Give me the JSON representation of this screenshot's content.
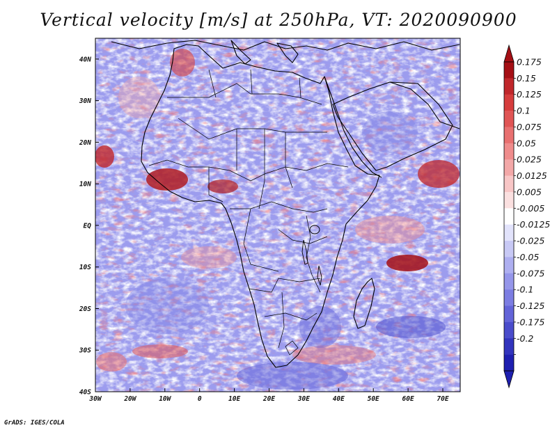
{
  "map": {
    "title": "Vertical velocity [m/s] at 250hPa, VT: 2020090900",
    "credit": "GrADS: IGES/COLA",
    "lon_range": [
      -30,
      75
    ],
    "lat_range": [
      -40,
      45
    ],
    "lon_ticks": [
      "30W",
      "20W",
      "10W",
      "0",
      "10E",
      "20E",
      "30E",
      "40E",
      "50E",
      "60E",
      "70E"
    ],
    "lat_ticks": [
      "40N",
      "30N",
      "20N",
      "10N",
      "EQ",
      "10S",
      "20S",
      "30S",
      "40S"
    ],
    "colorbar": {
      "labels": [
        "0.175",
        "0.15",
        "0.125",
        "0.1",
        "0.075",
        "0.05",
        "0.025",
        "0.0125",
        "0.005",
        "-0.005",
        "-0.0125",
        "-0.025",
        "-0.05",
        "-0.075",
        "-0.1",
        "-0.125",
        "-0.175",
        "-0.2"
      ],
      "colors": [
        "#a50f15",
        "#c0272b",
        "#d63d3d",
        "#e05555",
        "#e87070",
        "#ef8c8c",
        "#f3a8a8",
        "#f8c6c6",
        "#fbe0e0",
        "#ffffff",
        "#e2e3fb",
        "#c8c9f5",
        "#aeaff0",
        "#9596ea",
        "#7c7de2",
        "#6364d8",
        "#4a4ccb",
        "#3234bd",
        "#1e1fb0"
      ]
    },
    "colors": {
      "positive": "#d94040",
      "negative": "#6a6ae0",
      "coast": "#000000"
    }
  }
}
